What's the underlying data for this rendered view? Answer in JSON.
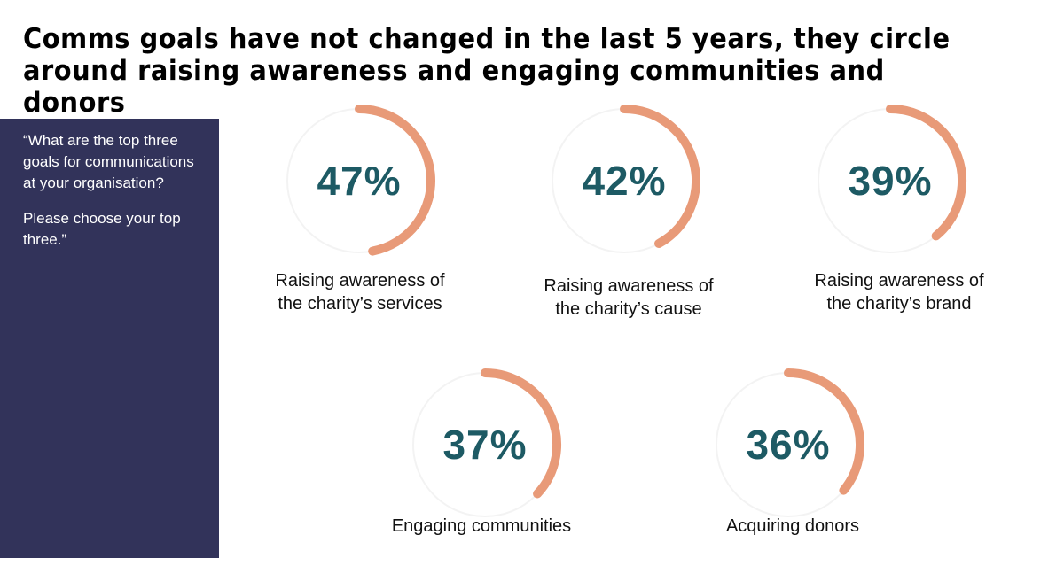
{
  "title": "Comms goals have not changed in the last 5 years, they circle around raising awareness and engaging communities and donors",
  "side_panel": {
    "question": "“What are the top three goals for communications at your organisation?",
    "instruction": "Please choose your top three.”"
  },
  "colors": {
    "arc": "#e89a78",
    "track": "#f3f3f3",
    "value_text": "#1d5a64",
    "panel": "#32335a"
  },
  "chart_data": {
    "type": "donut",
    "items": [
      {
        "label": "Raising awareness of the charity’s services",
        "value": 47,
        "display": "47%"
      },
      {
        "label": "Raising awareness of the charity’s cause",
        "value": 42,
        "display": "42%"
      },
      {
        "label": "Raising awareness of the charity’s brand",
        "value": 39,
        "display": "39%"
      },
      {
        "label": "Engaging communities",
        "value": 37,
        "display": "37%"
      },
      {
        "label": "Acquiring donors",
        "value": 36,
        "display": "36%"
      }
    ]
  }
}
